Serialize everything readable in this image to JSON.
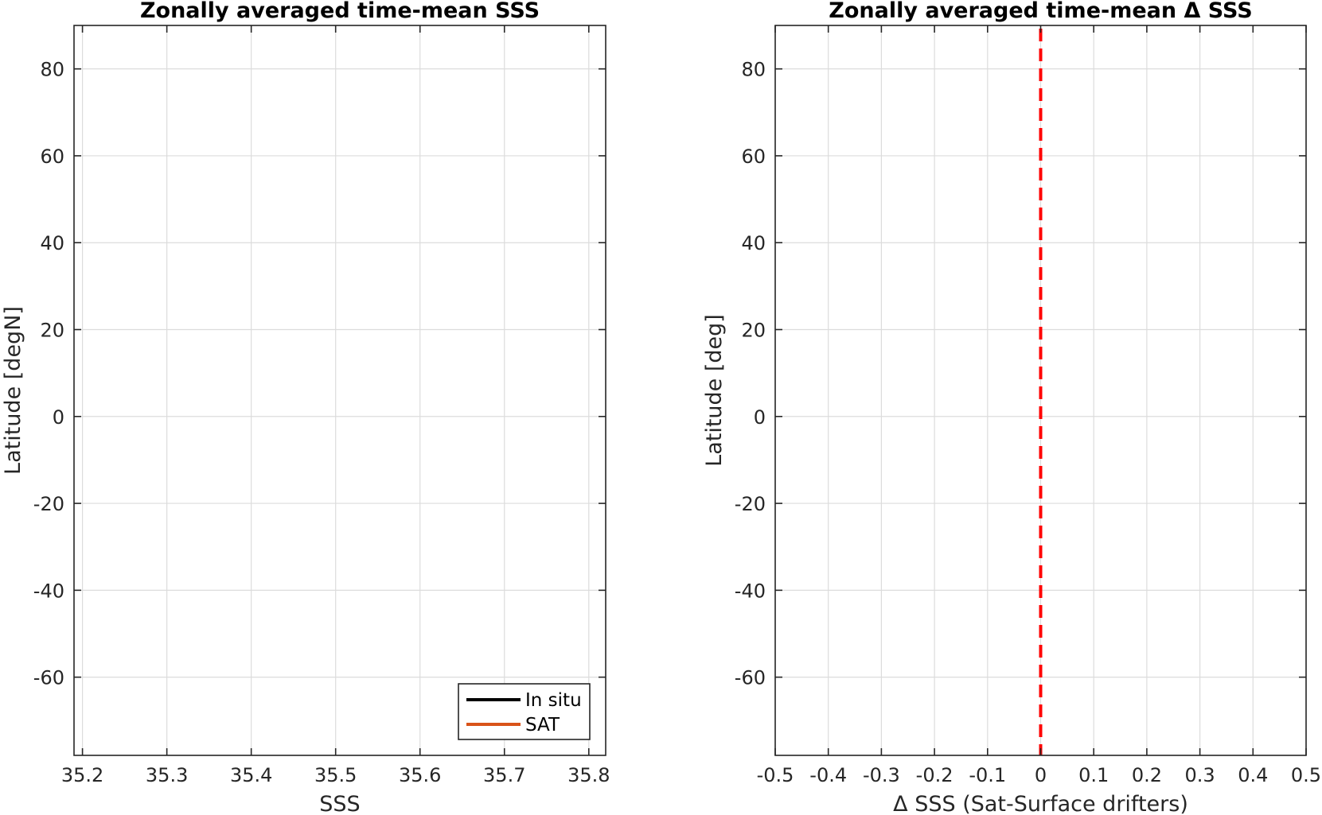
{
  "chart_data": [
    {
      "type": "line",
      "title": "Zonally averaged time-mean SSS",
      "xlabel": "SSS",
      "ylabel": "Latitude [degN]",
      "xlim": [
        35.19,
        35.82
      ],
      "ylim": [
        -78,
        90
      ],
      "x_ticks": [
        35.2,
        35.3,
        35.4,
        35.5,
        35.6,
        35.7,
        35.8
      ],
      "x_tick_labels": [
        "35.2",
        "35.3",
        "35.4",
        "35.5",
        "35.6",
        "35.7",
        "35.8"
      ],
      "y_ticks": [
        -60,
        -40,
        -20,
        0,
        20,
        40,
        60,
        80
      ],
      "y_tick_labels": [
        "-60",
        "-40",
        "-20",
        "0",
        "20",
        "40",
        "60",
        "80"
      ],
      "grid": true,
      "legend": {
        "placement": "bottom-right"
      },
      "series": [
        {
          "name": "In situ",
          "color": "#000000",
          "x": [],
          "y": []
        },
        {
          "name": "SAT",
          "color": "#d95319",
          "x": [],
          "y": []
        }
      ]
    },
    {
      "type": "line",
      "title": "Zonally averaged time-mean Δ SSS",
      "xlabel": "Δ SSS (Sat-Surface drifters)",
      "ylabel": "Latitude [deg]",
      "xlim": [
        -0.5,
        0.5
      ],
      "ylim": [
        -78,
        90
      ],
      "x_ticks": [
        -0.5,
        -0.4,
        -0.3,
        -0.2,
        -0.1,
        0,
        0.1,
        0.2,
        0.3,
        0.4,
        0.5
      ],
      "x_tick_labels": [
        "-0.5",
        "-0.4",
        "-0.3",
        "-0.2",
        "-0.1",
        "0",
        "0.1",
        "0.2",
        "0.3",
        "0.4",
        "0.5"
      ],
      "y_ticks": [
        -60,
        -40,
        -20,
        0,
        20,
        40,
        60,
        80
      ],
      "y_tick_labels": [
        "-60",
        "-40",
        "-20",
        "0",
        "20",
        "40",
        "60",
        "80"
      ],
      "grid": true,
      "reference_line": {
        "x": 0,
        "color": "#ff0000",
        "style": "dashed"
      }
    }
  ]
}
